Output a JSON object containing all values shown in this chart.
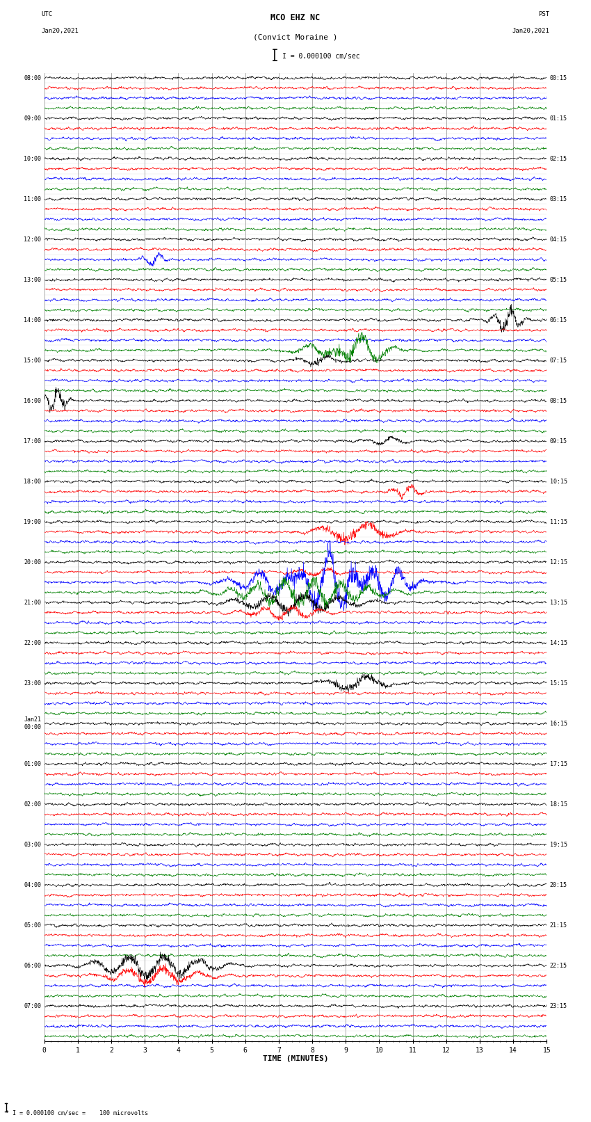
{
  "title_line1": "MCO EHZ NC",
  "title_line2": "(Convict Moraine )",
  "scale_label": "I = 0.000100 cm/sec",
  "xlabel": "TIME (MINUTES)",
  "footnote": "* I = 0.000100 cm/sec =    100 microvolts",
  "left_times_utc": [
    "08:00",
    "",
    "",
    "",
    "09:00",
    "",
    "",
    "",
    "10:00",
    "",
    "",
    "",
    "11:00",
    "",
    "",
    "",
    "12:00",
    "",
    "",
    "",
    "13:00",
    "",
    "",
    "",
    "14:00",
    "",
    "",
    "",
    "15:00",
    "",
    "",
    "",
    "16:00",
    "",
    "",
    "",
    "17:00",
    "",
    "",
    "",
    "18:00",
    "",
    "",
    "",
    "19:00",
    "",
    "",
    "",
    "20:00",
    "",
    "",
    "",
    "21:00",
    "",
    "",
    "",
    "22:00",
    "",
    "",
    "",
    "23:00",
    "",
    "",
    "",
    "Jan21\n00:00",
    "",
    "",
    "",
    "01:00",
    "",
    "",
    "",
    "02:00",
    "",
    "",
    "",
    "03:00",
    "",
    "",
    "",
    "04:00",
    "",
    "",
    "",
    "05:00",
    "",
    "",
    "",
    "06:00",
    "",
    "",
    "",
    "07:00",
    "",
    "",
    ""
  ],
  "right_times_pst": [
    "00:15",
    "",
    "",
    "",
    "01:15",
    "",
    "",
    "",
    "02:15",
    "",
    "",
    "",
    "03:15",
    "",
    "",
    "",
    "04:15",
    "",
    "",
    "",
    "05:15",
    "",
    "",
    "",
    "06:15",
    "",
    "",
    "",
    "07:15",
    "",
    "",
    "",
    "08:15",
    "",
    "",
    "",
    "09:15",
    "",
    "",
    "",
    "10:15",
    "",
    "",
    "",
    "11:15",
    "",
    "",
    "",
    "12:15",
    "",
    "",
    "",
    "13:15",
    "",
    "",
    "",
    "14:15",
    "",
    "",
    "",
    "15:15",
    "",
    "",
    "",
    "16:15",
    "",
    "",
    "",
    "17:15",
    "",
    "",
    "",
    "18:15",
    "",
    "",
    "",
    "19:15",
    "",
    "",
    "",
    "20:15",
    "",
    "",
    "",
    "21:15",
    "",
    "",
    "",
    "22:15",
    "",
    "",
    "",
    "23:15",
    "",
    "",
    ""
  ],
  "n_rows": 96,
  "row_colors_cycle": [
    "black",
    "red",
    "blue",
    "green"
  ],
  "bg_color": "white",
  "x_ticks": [
    0,
    1,
    2,
    3,
    4,
    5,
    6,
    7,
    8,
    9,
    10,
    11,
    12,
    13,
    14,
    15
  ]
}
